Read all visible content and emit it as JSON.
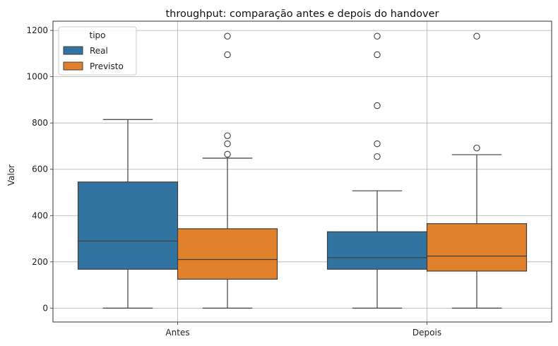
{
  "chart_data": {
    "type": "box",
    "title": "throughput: comparação antes e depois do handover",
    "xlabel": "",
    "ylabel": "Valor",
    "categories": [
      "Antes",
      "Depois"
    ],
    "ylim": [
      -60,
      1240
    ],
    "yticks": [
      0,
      200,
      400,
      600,
      800,
      1000,
      1200
    ],
    "grid": true,
    "legend": {
      "title": "tipo",
      "placement": "top-left"
    },
    "series": [
      {
        "name": "Real",
        "color": "#3274a1",
        "boxes": [
          {
            "category": "Antes",
            "whisker_low": 0,
            "q1": 168,
            "median": 290,
            "q3": 545,
            "whisker_high": 815,
            "outliers": []
          },
          {
            "category": "Depois",
            "whisker_low": 0,
            "q1": 168,
            "median": 218,
            "q3": 330,
            "whisker_high": 507,
            "outliers": [
              655,
              710,
              875,
              1095,
              1175
            ]
          }
        ]
      },
      {
        "name": "Previsto",
        "color": "#e1812c",
        "boxes": [
          {
            "category": "Antes",
            "whisker_low": 0,
            "q1": 125,
            "median": 210,
            "q3": 343,
            "whisker_high": 648,
            "outliers": [
              665,
              710,
              745,
              1095,
              1175
            ]
          },
          {
            "category": "Depois",
            "whisker_low": 0,
            "q1": 160,
            "median": 225,
            "q3": 365,
            "whisker_high": 663,
            "outliers": [
              692,
              1175
            ]
          }
        ]
      }
    ]
  }
}
